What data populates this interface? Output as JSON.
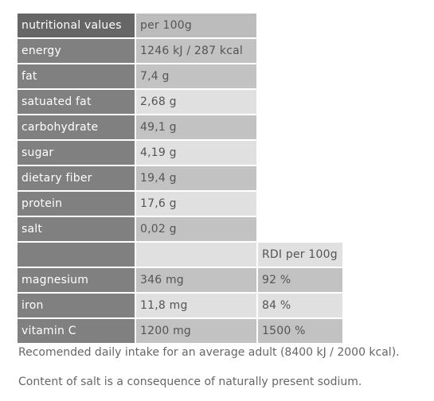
{
  "nutrition_table": {
    "header": {
      "label": "nutritional values",
      "value": "per 100g"
    },
    "rows": [
      {
        "label": "energy",
        "value": "1246 kJ / 287 kcal"
      },
      {
        "label": "fat",
        "value": "7,4 g"
      },
      {
        "label": "satuated fat",
        "value": "2,68 g"
      },
      {
        "label": "carbohydrate",
        "value": "49,1 g"
      },
      {
        "label": "sugar",
        "value": "4,19 g"
      },
      {
        "label": "dietary fiber",
        "value": "19,4 g"
      },
      {
        "label": "protein",
        "value": "17,6 g"
      },
      {
        "label": "salt",
        "value": "0,02 g"
      }
    ]
  },
  "mineral_table": {
    "header": {
      "label": "",
      "value": "",
      "rdi": "RDI per 100g"
    },
    "rows": [
      {
        "label": "magnesium",
        "value": "346 mg",
        "rdi": "92 %"
      },
      {
        "label": "iron",
        "value": "11,8 mg",
        "rdi": "84 %"
      },
      {
        "label": "vitamin C",
        "value": "1200 mg",
        "rdi": "1500 %"
      }
    ]
  },
  "footnotes": [
    "Recomended daily intake for an average adult (8400 kJ / 2000 kcal).",
    "Content of salt is a consequence of naturally present sodium."
  ]
}
